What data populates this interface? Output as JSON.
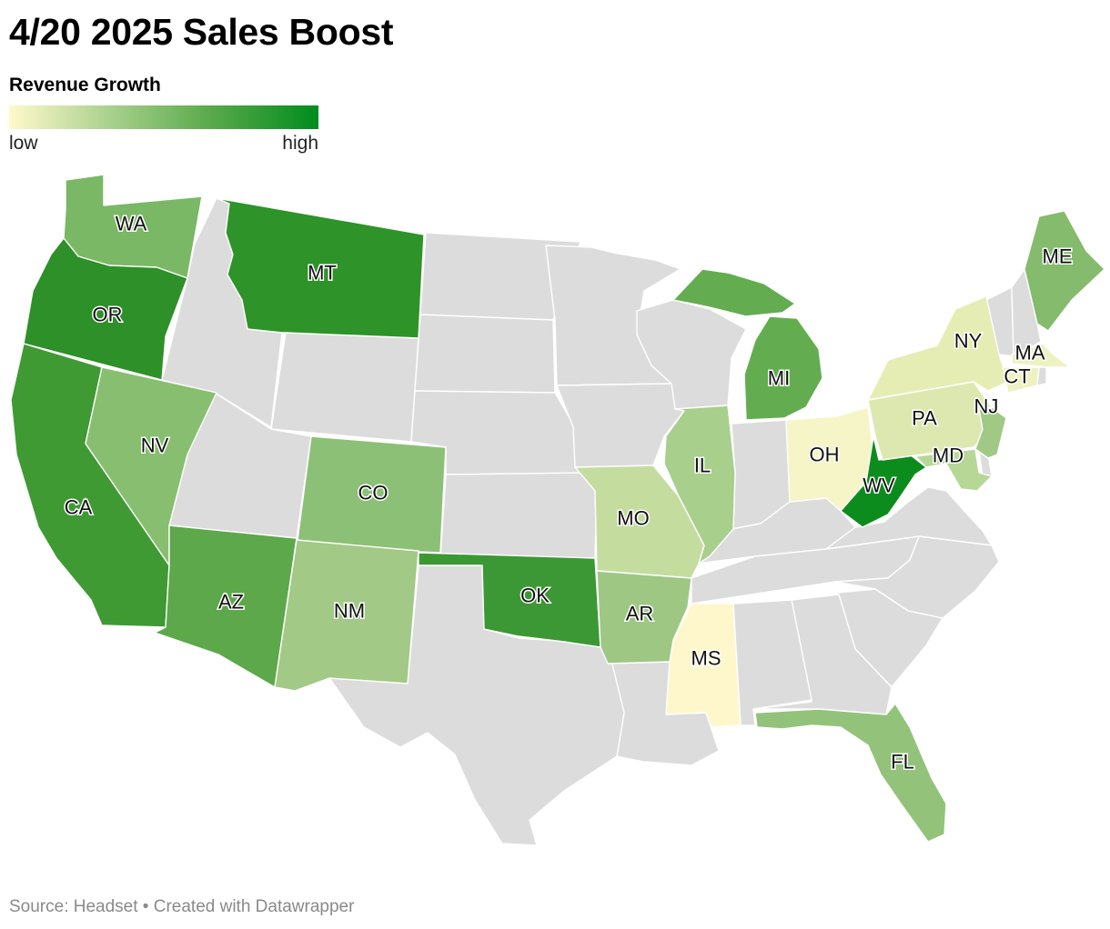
{
  "title": "4/20 2025 Sales Boost",
  "legend": {
    "title": "Revenue Growth",
    "low_label": "low",
    "high_label": "high",
    "scale_colors": [
      "#fff9cc",
      "#a8d08d",
      "#58a84a",
      "#008c1e"
    ]
  },
  "footer": {
    "source_text": "Source: Headset • Created with Datawrapper"
  },
  "colors": {
    "no_data": "#dcdcdc",
    "border": "#ffffff"
  },
  "states": [
    {
      "id": "WA",
      "label": "WA",
      "color": "#7ab865"
    },
    {
      "id": "OR",
      "label": "OR",
      "color": "#2e9028"
    },
    {
      "id": "CA",
      "label": "CA",
      "color": "#3f9a34"
    },
    {
      "id": "NV",
      "label": "NV",
      "color": "#88be70"
    },
    {
      "id": "MT",
      "label": "MT",
      "color": "#2e9328"
    },
    {
      "id": "AZ",
      "label": "AZ",
      "color": "#5ca84a"
    },
    {
      "id": "CO",
      "label": "CO",
      "color": "#8dc077"
    },
    {
      "id": "NM",
      "label": "NM",
      "color": "#a2c985"
    },
    {
      "id": "OK",
      "label": "OK",
      "color": "#3c9834"
    },
    {
      "id": "MO",
      "label": "MO",
      "color": "#c4dd9f"
    },
    {
      "id": "AR",
      "label": "AR",
      "color": "#9ec784"
    },
    {
      "id": "IL",
      "label": "IL",
      "color": "#a8cf8c"
    },
    {
      "id": "MS",
      "label": "MS",
      "color": "#fff7cc"
    },
    {
      "id": "MI",
      "label": "MI",
      "color": "#63ad50"
    },
    {
      "id": "OH",
      "label": "OH",
      "color": "#f5f5c7"
    },
    {
      "id": "WV",
      "label": "WV",
      "color": "#0d8c1e"
    },
    {
      "id": "PA",
      "label": "PA",
      "color": "#dde8b0"
    },
    {
      "id": "NY",
      "label": "NY",
      "color": "#e6edb4"
    },
    {
      "id": "NJ",
      "label": "NJ",
      "color": "#a0c985"
    },
    {
      "id": "MD",
      "label": "MD",
      "color": "#b6d796"
    },
    {
      "id": "MA",
      "label": "MA",
      "color": "#eef2c2"
    },
    {
      "id": "CT",
      "label": "CT",
      "color": "#eef2c2"
    },
    {
      "id": "ME",
      "label": "ME",
      "color": "#84bb6c"
    },
    {
      "id": "FL",
      "label": "FL",
      "color": "#93c37a"
    }
  ]
}
